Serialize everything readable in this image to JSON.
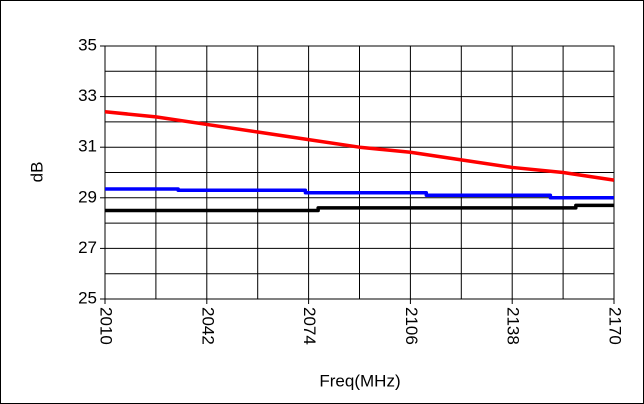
{
  "chart_data": {
    "type": "line",
    "xlabel": "Freq(MHz)",
    "ylabel": "dB",
    "xlim": [
      2010,
      2170
    ],
    "xticks": [
      2010,
      2042,
      2074,
      2106,
      2138,
      2170
    ],
    "minor_xticks": [
      2026,
      2058,
      2090,
      2122,
      2154
    ],
    "ylim": [
      25,
      35
    ],
    "yticks": [
      25,
      27,
      29,
      31,
      33,
      35
    ],
    "minor_yticks": [
      26,
      28,
      30,
      32,
      34
    ],
    "grid": true,
    "series": [
      {
        "color": "#ff0000",
        "x": [
          2010,
          2026,
          2042,
          2058,
          2074,
          2090,
          2106,
          2122,
          2138,
          2154,
          2170
        ],
        "values": [
          32.4,
          32.2,
          31.9,
          31.6,
          31.3,
          31.0,
          30.8,
          30.5,
          30.2,
          30.0,
          29.7
        ]
      },
      {
        "color": "#0000ff",
        "x": [
          2010,
          2033,
          2033,
          2073,
          2073,
          2111,
          2111,
          2150,
          2150,
          2170
        ],
        "values": [
          29.35,
          29.35,
          29.3,
          29.3,
          29.2,
          29.2,
          29.1,
          29.1,
          29.0,
          29.0
        ]
      },
      {
        "color": "#000000",
        "x": [
          2010,
          2077,
          2077,
          2158,
          2158,
          2170
        ],
        "values": [
          28.5,
          28.5,
          28.6,
          28.6,
          28.7,
          28.7
        ]
      }
    ]
  }
}
